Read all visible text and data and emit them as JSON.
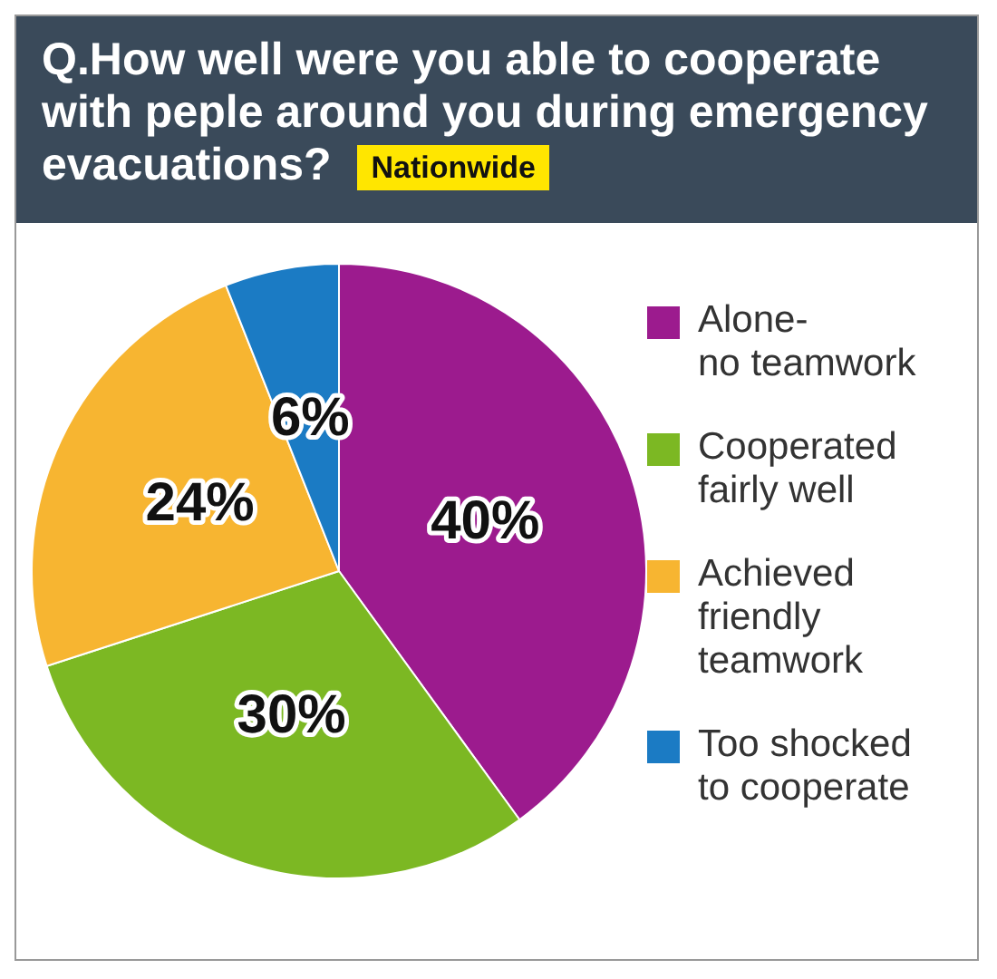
{
  "chart_data": {
    "type": "pie",
    "title": "Q.How well were you able to cooperate with peple around you during emergency evacuations?",
    "subtitle": "Nationwide",
    "categories": [
      "Alone-\nno teamwork",
      "Cooperated\nfairly well",
      "Achieved\nfriendly\nteamwork",
      "Too shocked\nto cooperate"
    ],
    "values": [
      40,
      30,
      24,
      6
    ],
    "value_labels": [
      "40%",
      "30%",
      "24%",
      "6%"
    ],
    "colors": [
      "#9c1b8e",
      "#7cb823",
      "#f7b531",
      "#1b7bc4"
    ],
    "legend": "right"
  }
}
